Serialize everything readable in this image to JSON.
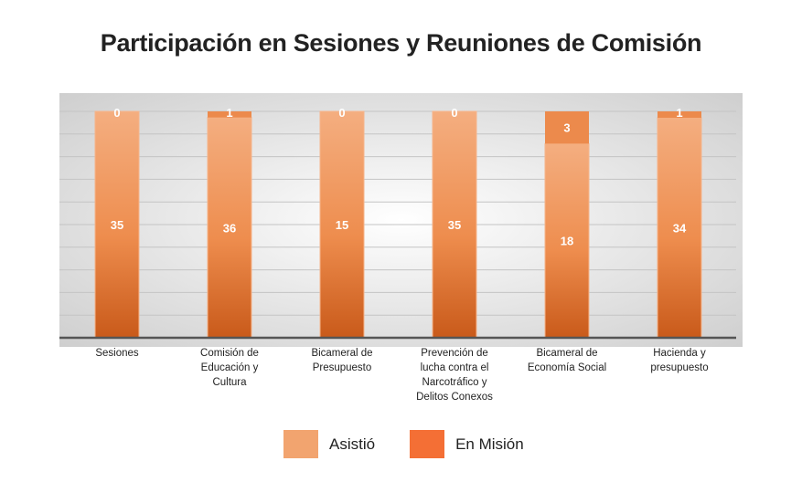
{
  "chart_data": {
    "type": "bar",
    "stacked": "percent",
    "title": "Participación en Sesiones y Reuniones de Comisión",
    "categories": [
      [
        "Sesiones"
      ],
      [
        "Comisión de",
        "Educación y",
        "Cultura"
      ],
      [
        "Bicameral de",
        "Presupuesto"
      ],
      [
        "Prevención de",
        "lucha contra el",
        "Narcotráfico y",
        "Delitos Conexos"
      ],
      [
        "Bicameral de",
        "Economía Social"
      ],
      [
        "Hacienda y",
        "presupuesto"
      ]
    ],
    "series": [
      {
        "name": "Asistió",
        "values": [
          35,
          36,
          15,
          35,
          18,
          34
        ],
        "color": "#f2a36e"
      },
      {
        "name": "En Misión",
        "values": [
          0,
          1,
          0,
          0,
          3,
          1
        ],
        "color": "#ec8a4c"
      }
    ],
    "legend_colors": [
      "#f2a46f",
      "#f46f35"
    ],
    "legend_position": "bottom",
    "grid": true
  }
}
